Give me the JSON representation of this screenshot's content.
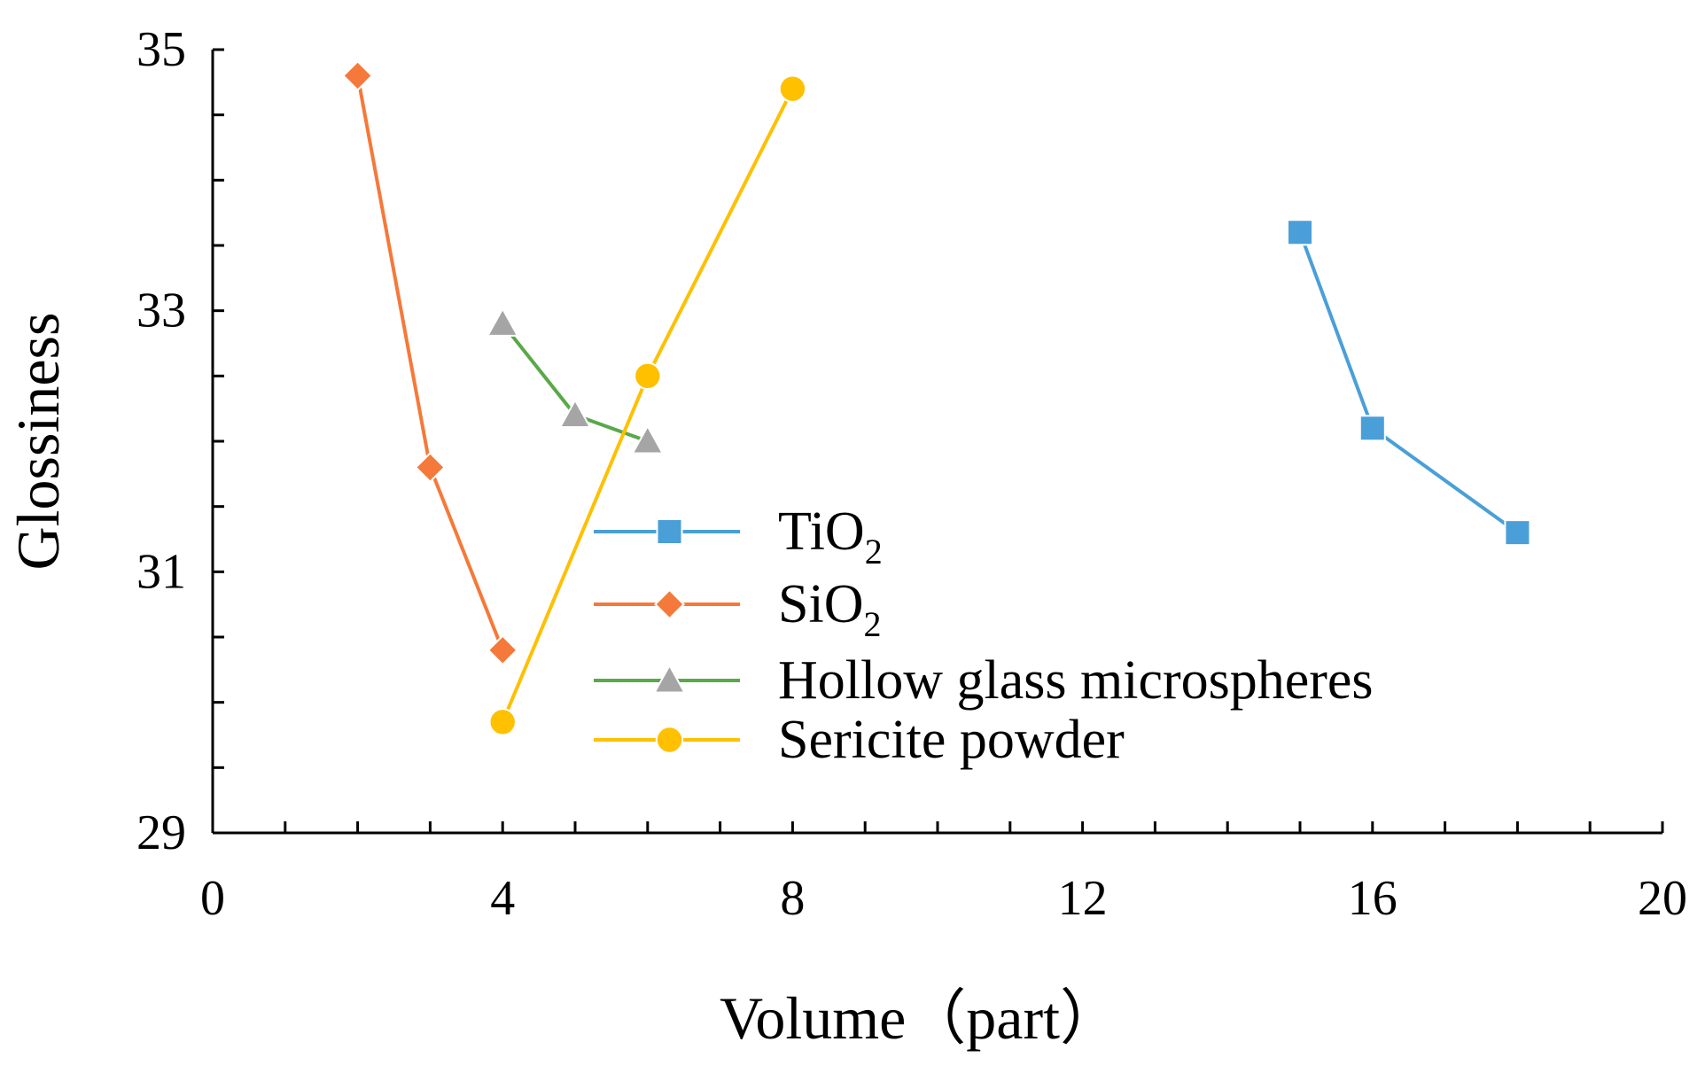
{
  "chart_data": {
    "type": "line",
    "title": "",
    "xlabel": "Volume（part）",
    "ylabel": "Glossiness",
    "xlim": [
      0,
      20
    ],
    "ylim": [
      29,
      35
    ],
    "x_ticks": [
      0,
      4,
      8,
      12,
      16,
      20
    ],
    "y_ticks": [
      29,
      31,
      33,
      35
    ],
    "x_tick_labels": [
      "0",
      "4",
      "8",
      "12",
      "16",
      "20"
    ],
    "y_tick_labels": [
      "29",
      "31",
      "33",
      "35"
    ],
    "x_minor_step": 1,
    "y_minor_step": 0.5,
    "grid": false,
    "legend_position": "center",
    "series": [
      {
        "name": "TiO",
        "name_subscript": "2",
        "marker": "square",
        "color": "#4a9fd8",
        "x": [
          15,
          16,
          18
        ],
        "y": [
          33.6,
          32.1,
          31.3
        ]
      },
      {
        "name": "SiO",
        "name_subscript": "2",
        "marker": "diamond",
        "color": "#f5793a",
        "x": [
          2,
          3,
          4
        ],
        "y": [
          34.8,
          31.8,
          30.4
        ]
      },
      {
        "name": "Hollow glass microspheres",
        "name_subscript": "",
        "marker": "triangle",
        "color": "#5aa84a",
        "x": [
          4,
          5,
          6
        ],
        "y": [
          32.9,
          32.2,
          32.0
        ]
      },
      {
        "name": "Sericite powder",
        "name_subscript": "",
        "marker": "circle",
        "color": "#ffc000",
        "x": [
          4,
          6,
          8
        ],
        "y": [
          29.85,
          32.5,
          34.7
        ]
      }
    ],
    "axis_color": "#000000",
    "marker_edge_color": "#ffffff",
    "background": "#ffffff"
  }
}
